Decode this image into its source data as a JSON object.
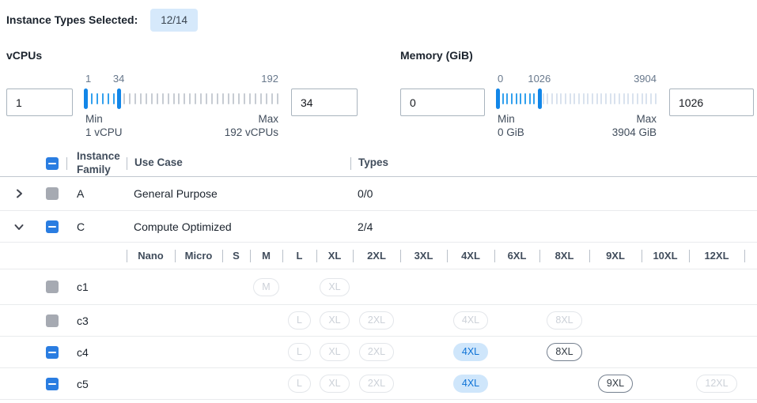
{
  "header": {
    "label": "Instance Types Selected:",
    "badge": "12/14"
  },
  "filters": [
    {
      "title": "vCPUs",
      "min_input": "1",
      "max_input": "34",
      "scale_low_label": "1",
      "scale_mid_label": "34",
      "scale_high_label": "192",
      "min_caption": "Min",
      "min_value_caption": "1 vCPU",
      "max_caption": "Max",
      "max_value_caption": "192 vCPUs",
      "range_min": 1,
      "range_max": 192,
      "low_value": 1,
      "high_value": 34
    },
    {
      "title": "Memory (GiB)",
      "min_input": "0",
      "max_input": "1026",
      "scale_low_label": "0",
      "scale_mid_label": "1026",
      "scale_high_label": "3904",
      "min_caption": "Min",
      "min_value_caption": "0 GiB",
      "max_caption": "Max",
      "max_value_caption": "3904 GiB",
      "range_min": 0,
      "range_max": 3904,
      "low_value": 0,
      "high_value": 1026
    }
  ],
  "table": {
    "select_all_checkbox": "indeterminate",
    "columns": {
      "family": "Instance Family",
      "use_case": "Use Case",
      "types": "Types"
    },
    "family_rows": [
      {
        "family": "A",
        "use_case": "General Purpose",
        "types": "0/0",
        "expanded": false,
        "checkbox": "disabled"
      },
      {
        "family": "C",
        "use_case": "Compute Optimized",
        "types": "2/4",
        "expanded": true,
        "checkbox": "indeterminate"
      }
    ],
    "size_columns": [
      "Nano",
      "Micro",
      "S",
      "M",
      "L",
      "XL",
      "2XL",
      "3XL",
      "4XL",
      "6XL",
      "8XL",
      "9XL",
      "10XL",
      "12XL"
    ],
    "instance_rows": [
      {
        "name": "c1",
        "checkbox": "disabled",
        "pills": {
          "M": "disabled",
          "XL": "disabled"
        }
      },
      {
        "name": "c3",
        "checkbox": "disabled",
        "pills": {
          "L": "disabled",
          "XL": "disabled",
          "2XL": "disabled",
          "4XL": "disabled",
          "8XL": "disabled"
        }
      },
      {
        "name": "c4",
        "checkbox": "indeterminate",
        "pills": {
          "L": "disabled",
          "XL": "disabled",
          "2XL": "disabled",
          "4XL": "selected",
          "8XL": "enabled"
        }
      },
      {
        "name": "c5",
        "checkbox": "indeterminate",
        "pills": {
          "L": "disabled",
          "XL": "disabled",
          "2XL": "disabled",
          "4XL": "selected",
          "9XL": "enabled",
          "12XL": "disabled"
        }
      }
    ]
  },
  "colors": {
    "accent_blue": "#2a7de1",
    "slider_active": "#31a0ee",
    "badge_bg": "#d6e9fb",
    "pill_selected_bg": "#cfe6fb",
    "pill_selected_text": "#0d72d6",
    "disabled_gray": "#a6aab2"
  }
}
